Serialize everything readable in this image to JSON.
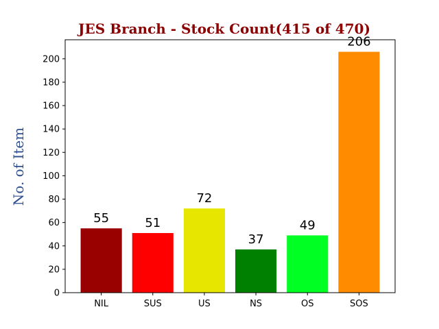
{
  "chart_data": {
    "type": "bar",
    "title": "JES Branch - Stock Count(415 of 470)",
    "ylabel": "No. of Item",
    "xlabel": "",
    "categories": [
      "NIL",
      "SUS",
      "US",
      "NS",
      "OS",
      "SOS"
    ],
    "values": [
      55,
      51,
      72,
      37,
      49,
      206
    ],
    "colors": [
      "#990000",
      "#ff0000",
      "#e6e600",
      "#008000",
      "#00ff22",
      "#ff8c00"
    ],
    "ylim": [
      0,
      216.3
    ],
    "yticks": [
      "0",
      "20",
      "40",
      "60",
      "80",
      "100",
      "120",
      "140",
      "160",
      "180",
      "200"
    ],
    "grid": false,
    "title_color": "#8b0000",
    "ylabel_color": "#2f4f8f"
  }
}
